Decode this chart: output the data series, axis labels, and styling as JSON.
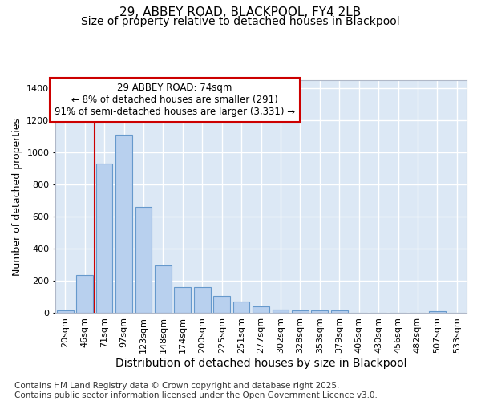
{
  "title": "29, ABBEY ROAD, BLACKPOOL, FY4 2LB",
  "subtitle": "Size of property relative to detached houses in Blackpool",
  "xlabel": "Distribution of detached houses by size in Blackpool",
  "ylabel": "Number of detached properties",
  "categories": [
    "20sqm",
    "46sqm",
    "71sqm",
    "97sqm",
    "123sqm",
    "148sqm",
    "174sqm",
    "200sqm",
    "225sqm",
    "251sqm",
    "277sqm",
    "302sqm",
    "328sqm",
    "353sqm",
    "379sqm",
    "405sqm",
    "430sqm",
    "456sqm",
    "482sqm",
    "507sqm",
    "533sqm"
  ],
  "values": [
    15,
    235,
    930,
    1110,
    660,
    295,
    160,
    160,
    105,
    68,
    40,
    20,
    15,
    14,
    15,
    2,
    0,
    0,
    0,
    8,
    0
  ],
  "bar_color": "#b8d0ee",
  "bar_edge_color": "#6699cc",
  "background_color": "#dce8f5",
  "grid_color": "#ffffff",
  "annotation_box_text": "29 ABBEY ROAD: 74sqm\n← 8% of detached houses are smaller (291)\n91% of semi-detached houses are larger (3,331) →",
  "vline_x": 2.0,
  "vline_color": "#cc0000",
  "footer_text": "Contains HM Land Registry data © Crown copyright and database right 2025.\nContains public sector information licensed under the Open Government Licence v3.0.",
  "ylim": [
    0,
    1450
  ],
  "title_fontsize": 11,
  "subtitle_fontsize": 10,
  "ylabel_fontsize": 9,
  "xlabel_fontsize": 10,
  "tick_fontsize": 8,
  "footer_fontsize": 7.5,
  "annot_fontsize": 8.5
}
